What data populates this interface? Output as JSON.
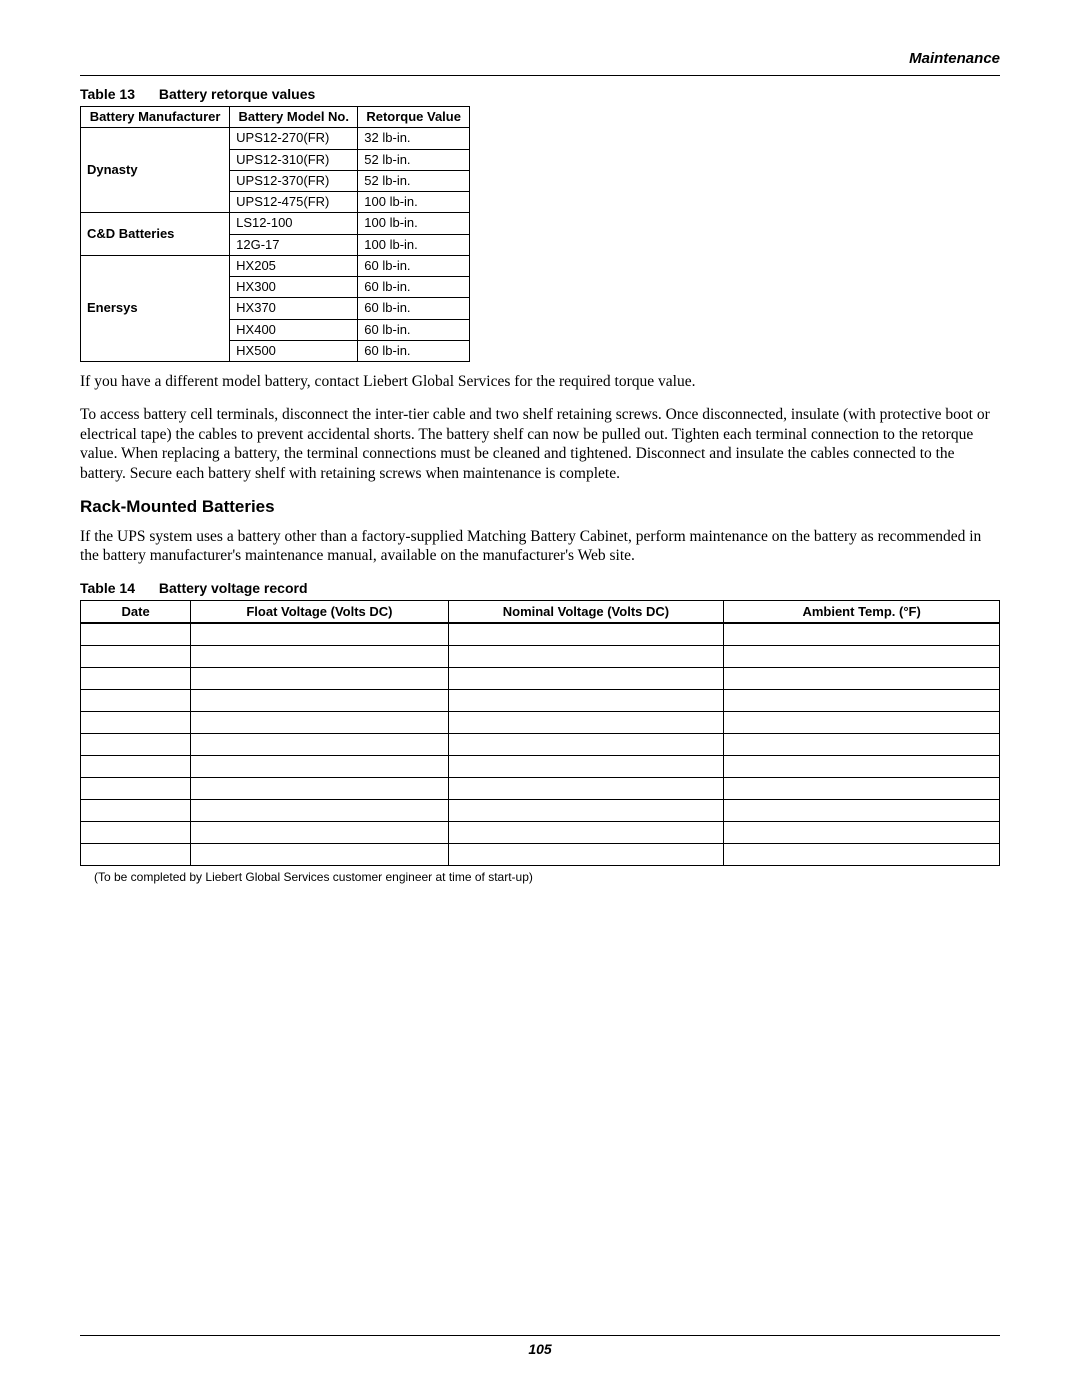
{
  "header": {
    "section": "Maintenance"
  },
  "table13": {
    "caption_num": "Table 13",
    "caption_title": "Battery retorque values",
    "columns": [
      "Battery Manufacturer",
      "Battery Model No.",
      "Retorque Value"
    ],
    "groups": [
      {
        "manufacturer": "Dynasty",
        "rows": [
          {
            "model": "UPS12-270(FR)",
            "value": "32 lb-in."
          },
          {
            "model": "UPS12-310(FR)",
            "value": "52 lb-in."
          },
          {
            "model": "UPS12-370(FR)",
            "value": "52 lb-in."
          },
          {
            "model": "UPS12-475(FR)",
            "value": "100 lb-in."
          }
        ]
      },
      {
        "manufacturer": "C&D Batteries",
        "rows": [
          {
            "model": "LS12-100",
            "value": "100 lb-in."
          },
          {
            "model": "12G-17",
            "value": "100 lb-in."
          }
        ]
      },
      {
        "manufacturer": "Enersys",
        "rows": [
          {
            "model": "HX205",
            "value": "60 lb-in."
          },
          {
            "model": "HX300",
            "value": "60 lb-in."
          },
          {
            "model": "HX370",
            "value": "60 lb-in."
          },
          {
            "model": "HX400",
            "value": "60 lb-in."
          },
          {
            "model": "HX500",
            "value": "60 lb-in."
          }
        ]
      }
    ]
  },
  "paragraphs": {
    "p1": "If you have a different model battery, contact Liebert Global Services for the required torque value.",
    "p2": "To access battery cell terminals, disconnect the inter-tier cable and two shelf retaining screws. Once disconnected, insulate (with protective boot or electrical tape) the cables to prevent accidental shorts. The battery shelf can now be pulled out. Tighten each terminal connection to the retorque value. When replacing a battery, the terminal connections must be cleaned and tightened. Disconnect and insulate the cables connected to the battery. Secure each battery shelf with retaining screws when maintenance is complete.",
    "p3": "If the UPS system uses a battery other than a factory-supplied Matching Battery Cabinet, perform maintenance on the battery as recommended in the battery manufacturer's maintenance manual, available on the manufacturer's Web site."
  },
  "section_heading": "Rack-Mounted Batteries",
  "table14": {
    "caption_num": "Table 14",
    "caption_title": "Battery voltage record",
    "columns": [
      "Date",
      "Float Voltage (Volts DC)",
      "Nominal Voltage (Volts DC)",
      "Ambient Temp. (°F)"
    ],
    "blank_rows": 11,
    "col_widths": [
      "12%",
      "28%",
      "30%",
      "30%"
    ],
    "footnote": "(To be completed by Liebert Global Services customer engineer at time of start-up)"
  },
  "footer": {
    "page_number": "105"
  }
}
